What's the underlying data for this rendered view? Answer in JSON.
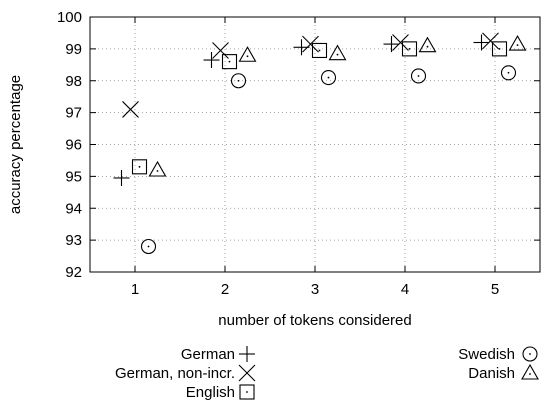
{
  "chart_data": {
    "type": "scatter",
    "xlabel": "number of tokens considered",
    "ylabel": "accuracy percentage",
    "xlim": [
      0.5,
      5.5
    ],
    "ylim": [
      92,
      100
    ],
    "x_ticks": [
      "1",
      "2",
      "3",
      "4",
      "5"
    ],
    "y_ticks": [
      "92",
      "93",
      "94",
      "95",
      "96",
      "97",
      "98",
      "99",
      "100"
    ],
    "grid": true,
    "legend_position": "below",
    "series": [
      {
        "name": "German",
        "marker": "plus",
        "x": [
          0.85,
          1.85,
          2.85,
          3.85,
          4.85
        ],
        "y": [
          94.95,
          98.65,
          99.05,
          99.15,
          99.2
        ]
      },
      {
        "name": "German, non-incr.",
        "marker": "cross",
        "x": [
          0.95,
          1.95,
          2.95,
          3.95,
          4.95
        ],
        "y": [
          97.1,
          98.95,
          99.15,
          99.2,
          99.25
        ]
      },
      {
        "name": "English",
        "marker": "square",
        "x": [
          1.05,
          2.05,
          3.05,
          4.05,
          5.05
        ],
        "y": [
          95.3,
          98.6,
          98.95,
          99.0,
          99.0
        ]
      },
      {
        "name": "Swedish",
        "marker": "circle",
        "x": [
          1.15,
          2.15,
          3.15,
          4.15,
          5.15
        ],
        "y": [
          92.8,
          98.0,
          98.1,
          98.15,
          98.25
        ]
      },
      {
        "name": "Danish",
        "marker": "triangle",
        "x": [
          1.25,
          2.25,
          3.25,
          4.25,
          5.25
        ],
        "y": [
          95.2,
          98.8,
          98.85,
          99.1,
          99.15
        ]
      }
    ]
  }
}
